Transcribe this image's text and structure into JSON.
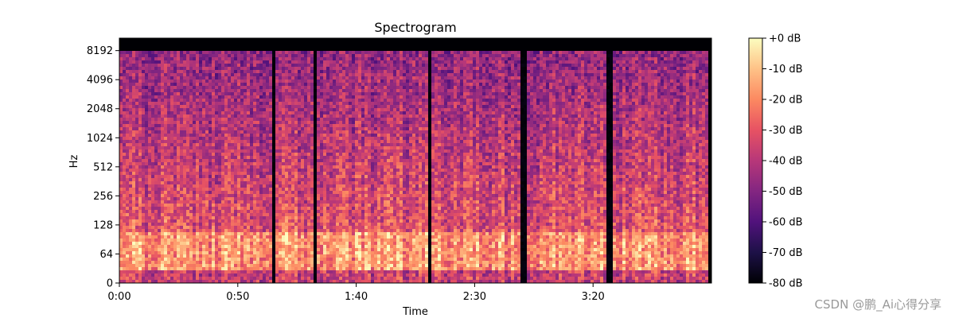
{
  "chart_data": {
    "type": "heatmap",
    "title": "Spectrogram",
    "xlabel": "Time",
    "ylabel": "Hz",
    "x_axis": {
      "unit": "time",
      "ticks": [
        "0:00",
        "0:50",
        "1:40",
        "2:30",
        "3:20"
      ],
      "tick_values_seconds": [
        0,
        50,
        100,
        150,
        200
      ],
      "range_seconds": [
        0,
        250
      ]
    },
    "y_axis": {
      "scale": "log",
      "ticks": [
        "0",
        "64",
        "128",
        "256",
        "512",
        "1024",
        "2048",
        "4096",
        "8192"
      ],
      "tick_values_hz": [
        0,
        64,
        128,
        256,
        512,
        1024,
        2048,
        4096,
        8192
      ],
      "max_hz": 11025
    },
    "colorbar": {
      "ticks": [
        "+0 dB",
        "-10 dB",
        "-20 dB",
        "-30 dB",
        "-40 dB",
        "-50 dB",
        "-60 dB",
        "-70 dB",
        "-80 dB"
      ],
      "range_db": [
        -80,
        0
      ],
      "colormap": "magma"
    },
    "features": {
      "silent_gaps_seconds": [
        [
          64,
          66
        ],
        [
          82,
          84
        ],
        [
          130,
          132
        ],
        [
          170,
          172
        ],
        [
          206,
          208
        ]
      ],
      "energy_band_hz": [
        30,
        110
      ],
      "upper_cutoff_hz": 8192
    }
  },
  "watermark": "CSDN @鹏_Ai心得分享",
  "colors": {
    "background": "#ffffff",
    "axis": "#000000",
    "watermark": "#9a9a9a"
  }
}
